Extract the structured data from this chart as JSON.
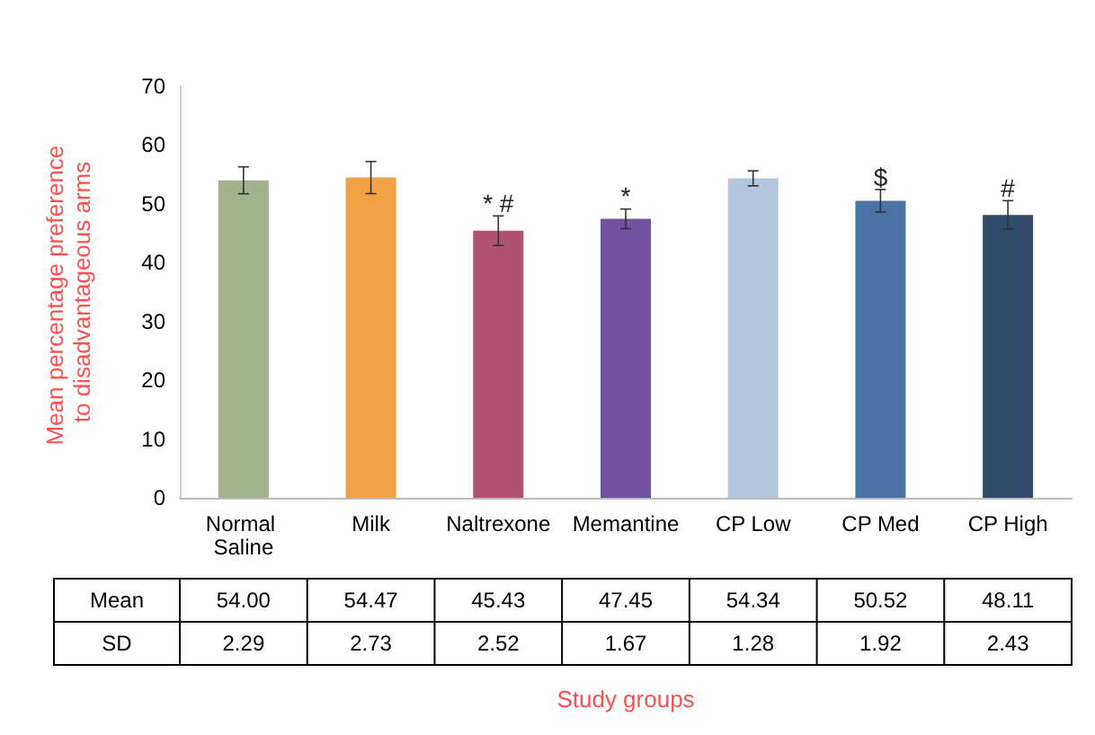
{
  "chart_data": {
    "type": "bar",
    "ylabel": "Mean percentage preference to disadvantageous arms",
    "categories": [
      "Normal Saline",
      "Milk",
      "Naltrexone",
      "Memantine",
      "CP Low",
      "CP Med",
      "CP High"
    ],
    "values": [
      54.0,
      54.47,
      45.43,
      47.45,
      54.34,
      50.52,
      48.11
    ],
    "value_labels": [
      "54.00",
      "54.47",
      "45.43",
      "47.45",
      "54.34",
      "50.52",
      "48.11"
    ],
    "errors": [
      2.29,
      2.73,
      2.52,
      1.67,
      1.28,
      1.92,
      2.43
    ],
    "colors": [
      "#a2b28c",
      "#f0a244",
      "#b25272",
      "#7152a0",
      "#b3c6dd",
      "#4a73a5",
      "#304b6b"
    ],
    "ylim": [
      0,
      70
    ],
    "yticks": [
      0,
      10,
      20,
      30,
      40,
      50,
      60,
      70
    ],
    "grid": false,
    "annotations": [
      {
        "text": "* #",
        "x": "Naltrexone",
        "y": 48
      },
      {
        "text": "*",
        "x": "Memantine",
        "y": 49.2
      },
      {
        "text": "$",
        "x": "CP Med",
        "y": 52.5
      },
      {
        "text": "#",
        "x": "CP High",
        "y": 50.6
      },
      "Mean",
      "SD",
      "2.29",
      "2.73",
      "2.52",
      "1.67",
      "1.28",
      "1.92",
      "2.43",
      "Study groups"
    ]
  }
}
